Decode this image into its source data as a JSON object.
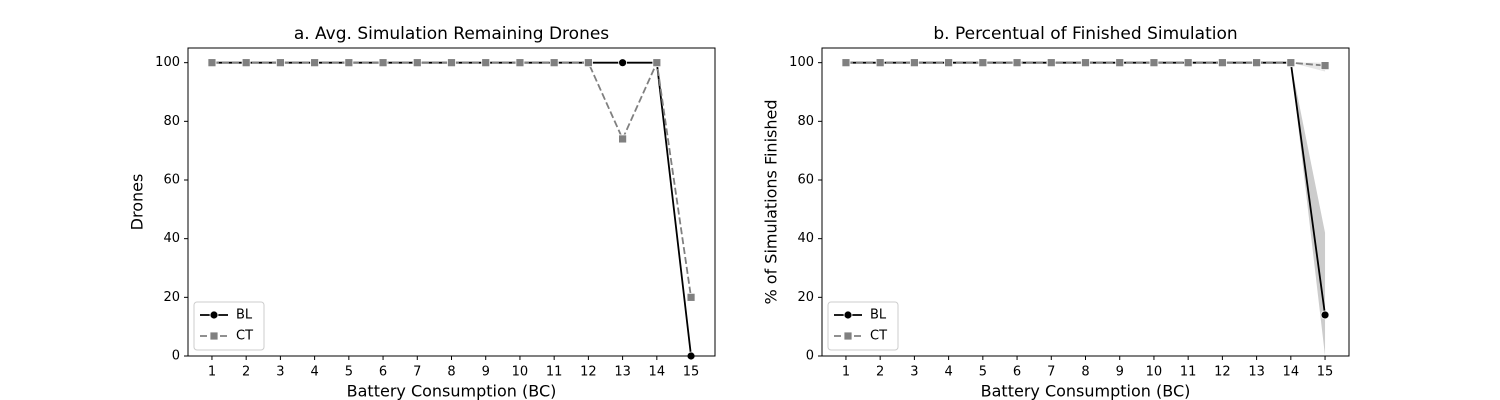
{
  "chart_data": [
    {
      "type": "line",
      "title": "a. Avg. Simulation Remaining Drones",
      "xlabel": "Battery Consumption (BC)",
      "ylabel": "Drones",
      "x": [
        1,
        2,
        3,
        4,
        5,
        6,
        7,
        8,
        9,
        10,
        11,
        12,
        13,
        14,
        15
      ],
      "series": [
        {
          "name": "BL",
          "color": "#000000",
          "marker": "circle",
          "linestyle": "solid",
          "values": [
            100,
            100,
            100,
            100,
            100,
            100,
            100,
            100,
            100,
            100,
            100,
            100,
            100,
            100,
            0
          ]
        },
        {
          "name": "CT",
          "color": "#808080",
          "marker": "square",
          "linestyle": "dashed",
          "values": [
            100,
            100,
            100,
            100,
            100,
            100,
            100,
            100,
            100,
            100,
            100,
            100,
            74,
            100,
            20
          ]
        }
      ],
      "xlim": [
        0.3,
        15.7
      ],
      "xticks": [
        1,
        2,
        3,
        4,
        5,
        6,
        7,
        8,
        9,
        10,
        11,
        12,
        13,
        14,
        15
      ],
      "ylim": [
        0,
        105
      ],
      "yticks": [
        0,
        20,
        40,
        60,
        80,
        100
      ],
      "legend": "lower left"
    },
    {
      "type": "line",
      "title": "b. Percentual of Finished Simulation",
      "xlabel": "Battery Consumption (BC)",
      "ylabel": "% of Simulations Finished",
      "x": [
        1,
        2,
        3,
        4,
        5,
        6,
        7,
        8,
        9,
        10,
        11,
        12,
        13,
        14,
        15
      ],
      "series": [
        {
          "name": "BL",
          "color": "#000000",
          "marker": "circle",
          "linestyle": "solid",
          "values": [
            100,
            100,
            100,
            100,
            100,
            100,
            100,
            100,
            100,
            100,
            100,
            100,
            100,
            100,
            14
          ],
          "ci_low": [
            100,
            100,
            100,
            100,
            100,
            100,
            100,
            100,
            100,
            100,
            100,
            100,
            100,
            100,
            0
          ],
          "ci_high": [
            100,
            100,
            100,
            100,
            100,
            100,
            100,
            100,
            100,
            100,
            100,
            100,
            100,
            100,
            42
          ]
        },
        {
          "name": "CT",
          "color": "#808080",
          "marker": "square",
          "linestyle": "dashed",
          "values": [
            100,
            100,
            100,
            100,
            100,
            100,
            100,
            100,
            100,
            100,
            100,
            100,
            100,
            100,
            99
          ],
          "ci_low": [
            100,
            100,
            100,
            100,
            100,
            100,
            100,
            100,
            100,
            100,
            100,
            100,
            100,
            100,
            97
          ],
          "ci_high": [
            100,
            100,
            100,
            100,
            100,
            100,
            100,
            100,
            100,
            100,
            100,
            100,
            100,
            100,
            100
          ]
        }
      ],
      "xlim": [
        0.3,
        15.7
      ],
      "xticks": [
        1,
        2,
        3,
        4,
        5,
        6,
        7,
        8,
        9,
        10,
        11,
        12,
        13,
        14,
        15
      ],
      "ylim": [
        0,
        105
      ],
      "yticks": [
        0,
        20,
        40,
        60,
        80,
        100
      ],
      "legend": "lower left"
    }
  ]
}
